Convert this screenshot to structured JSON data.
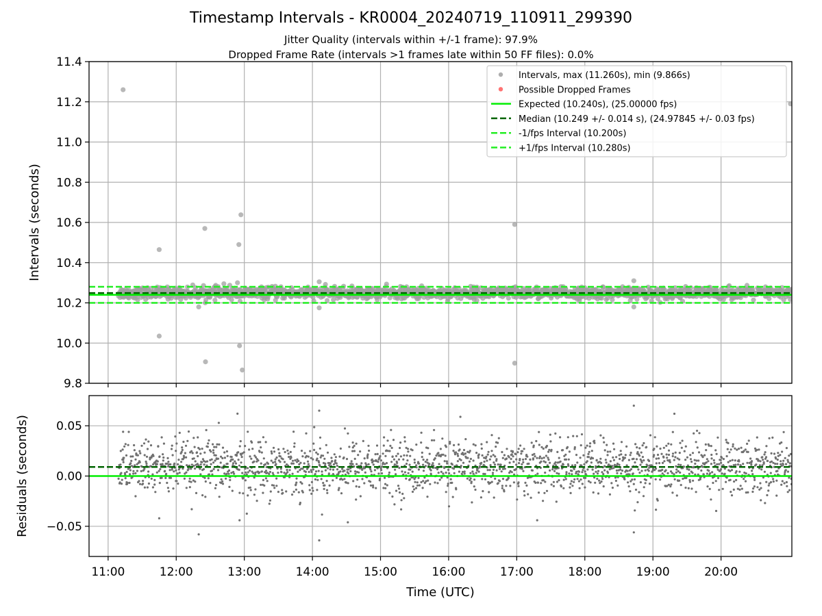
{
  "chart_data": {
    "type": "scatter",
    "title": "Timestamp Intervals - KR0004_20240719_110911_299390",
    "subtitle_1": "Jitter Quality (intervals within +/-1 frame): 97.9%",
    "subtitle_2": "Dropped Frame Rate (intervals >1 frames late within 50 FF files): 0.0%",
    "xlabel": "Time (UTC)",
    "x_ticks": [
      "11:00",
      "12:00",
      "13:00",
      "14:00",
      "15:00",
      "16:00",
      "17:00",
      "18:00",
      "19:00",
      "20:00"
    ],
    "xlim_hours": [
      10.72,
      21.04
    ],
    "grid": true,
    "panels": [
      {
        "name": "intervals",
        "ylabel": "Intervals (seconds)",
        "ylim": [
          9.8,
          11.4
        ],
        "y_ticks": [
          "9.8",
          "10.0",
          "10.2",
          "10.4",
          "10.6",
          "10.8",
          "11.0",
          "11.2",
          "11.4"
        ],
        "legend_position": "top-right",
        "legend": [
          "Intervals, max (11.260s), min (9.866s)",
          "Possible Dropped Frames",
          "Expected (10.240s), (25.00000 fps)",
          "Median (10.249 +/- 0.014 s), (24.97845 +/- 0.03 fps)",
          "-1/fps Interval (10.200s)",
          "+1/fps Interval (10.280s)"
        ],
        "reference_lines": {
          "expected": 10.24,
          "median": 10.249,
          "minus_one_frame": 10.2,
          "plus_one_frame": 10.28
        },
        "band_points": {
          "count": 1800,
          "center": 10.249,
          "spread": 0.014,
          "x_start": 11.15,
          "x_end": 21.04
        },
        "outliers": [
          {
            "x": 11.22,
            "y": 11.26
          },
          {
            "x": 11.75,
            "y": 10.465
          },
          {
            "x": 11.75,
            "y": 10.035
          },
          {
            "x": 12.42,
            "y": 10.57
          },
          {
            "x": 12.43,
            "y": 9.907
          },
          {
            "x": 12.92,
            "y": 10.49
          },
          {
            "x": 12.95,
            "y": 10.638
          },
          {
            "x": 12.93,
            "y": 9.987
          },
          {
            "x": 12.97,
            "y": 9.866
          },
          {
            "x": 12.9,
            "y": 10.3
          },
          {
            "x": 12.7,
            "y": 10.295
          },
          {
            "x": 12.33,
            "y": 10.18
          },
          {
            "x": 14.1,
            "y": 10.305
          },
          {
            "x": 14.1,
            "y": 10.175
          },
          {
            "x": 16.97,
            "y": 10.59
          },
          {
            "x": 16.97,
            "y": 9.9
          },
          {
            "x": 18.72,
            "y": 10.31
          },
          {
            "x": 18.72,
            "y": 10.18
          },
          {
            "x": 21.02,
            "y": 11.19
          }
        ]
      },
      {
        "name": "residuals",
        "ylabel": "Residuals (seconds)",
        "ylim": [
          -0.08,
          0.08
        ],
        "y_ticks": [
          "−0.05",
          "0.00",
          "0.05"
        ],
        "reference_lines": {
          "expected": 0.0,
          "median": 0.009
        },
        "band_points": {
          "count": 2000,
          "center": 0.009,
          "spread": 0.014,
          "x_start": 11.15,
          "x_end": 21.04
        },
        "outliers": [
          {
            "x": 11.22,
            "y": 0.044
          },
          {
            "x": 11.75,
            "y": -0.042
          },
          {
            "x": 12.33,
            "y": -0.058
          },
          {
            "x": 12.9,
            "y": 0.062
          },
          {
            "x": 12.93,
            "y": -0.044
          },
          {
            "x": 14.1,
            "y": 0.065
          },
          {
            "x": 14.1,
            "y": -0.064
          },
          {
            "x": 14.52,
            "y": -0.046
          },
          {
            "x": 17.3,
            "y": -0.044
          },
          {
            "x": 18.72,
            "y": 0.07
          },
          {
            "x": 18.72,
            "y": -0.056
          }
        ]
      }
    ],
    "colors": {
      "points_top": "#a0a0a0",
      "points_bottom": "#707070",
      "dropped": "#ff5a5a",
      "expected": "#00ee00",
      "median": "#006400",
      "fps_bounds": "#22ee22"
    }
  }
}
